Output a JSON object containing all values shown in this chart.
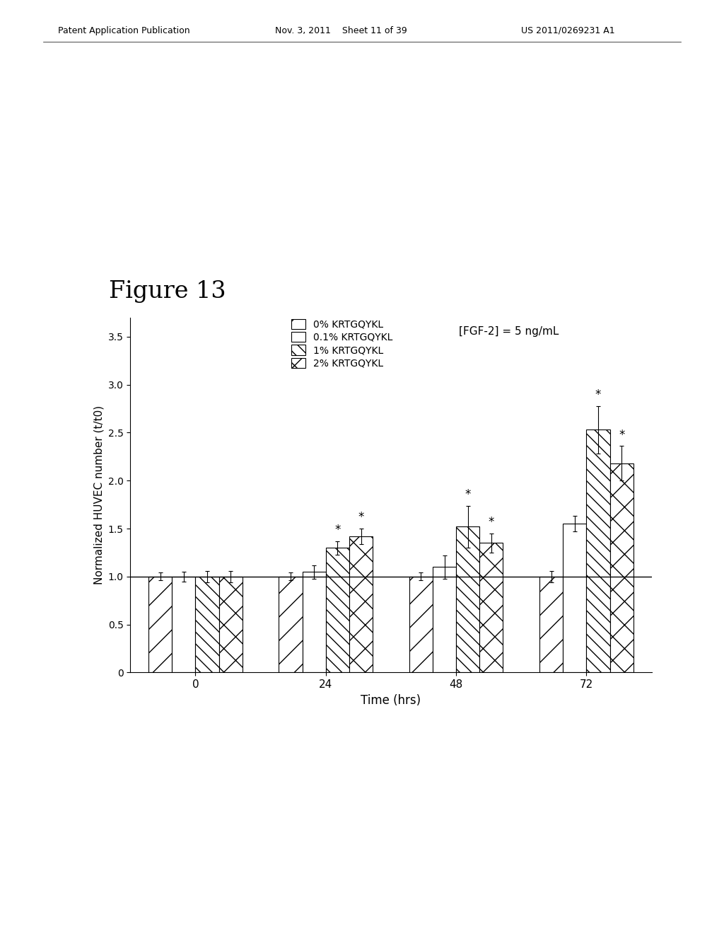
{
  "title": "Figure 13",
  "xlabel": "Time (hrs)",
  "ylabel": "Normalized HUVEC number (t/t0)",
  "annotation": "[FGF-2] = 5 ng/mL",
  "time_points": [
    0,
    24,
    48,
    72
  ],
  "series_labels": [
    "0% KRTGQYKL",
    "0.1% KRTGQYKL",
    "1% KRTGQYKL",
    "2% KRTGQYKL"
  ],
  "bar_values": [
    [
      1.0,
      1.0,
      1.0,
      1.0
    ],
    [
      1.0,
      1.05,
      1.1,
      1.55
    ],
    [
      1.0,
      1.3,
      1.52,
      2.53
    ],
    [
      1.0,
      1.42,
      1.35,
      2.18
    ]
  ],
  "bar_errors": [
    [
      0.04,
      0.04,
      0.04,
      0.06
    ],
    [
      0.05,
      0.07,
      0.12,
      0.08
    ],
    [
      0.06,
      0.07,
      0.22,
      0.25
    ],
    [
      0.06,
      0.08,
      0.1,
      0.18
    ]
  ],
  "significant": [
    [
      false,
      false,
      false,
      false
    ],
    [
      false,
      false,
      false,
      false
    ],
    [
      false,
      true,
      true,
      true
    ],
    [
      false,
      true,
      true,
      true
    ]
  ],
  "ylim": [
    0,
    3.7
  ],
  "yticks": [
    0,
    0.5,
    1.0,
    1.5,
    2.0,
    2.5,
    3.0,
    3.5
  ],
  "bar_width": 0.18,
  "background_color": "#ffffff",
  "hatch_patterns": [
    "/",
    "",
    "\\\\",
    "x"
  ],
  "edge_color": "#000000",
  "face_colors": [
    "#ffffff",
    "#ffffff",
    "#ffffff",
    "#ffffff"
  ],
  "header_left": "Patent Application Publication",
  "header_mid": "Nov. 3, 2011    Sheet 11 of 39",
  "header_right": "US 2011/0269231 A1"
}
